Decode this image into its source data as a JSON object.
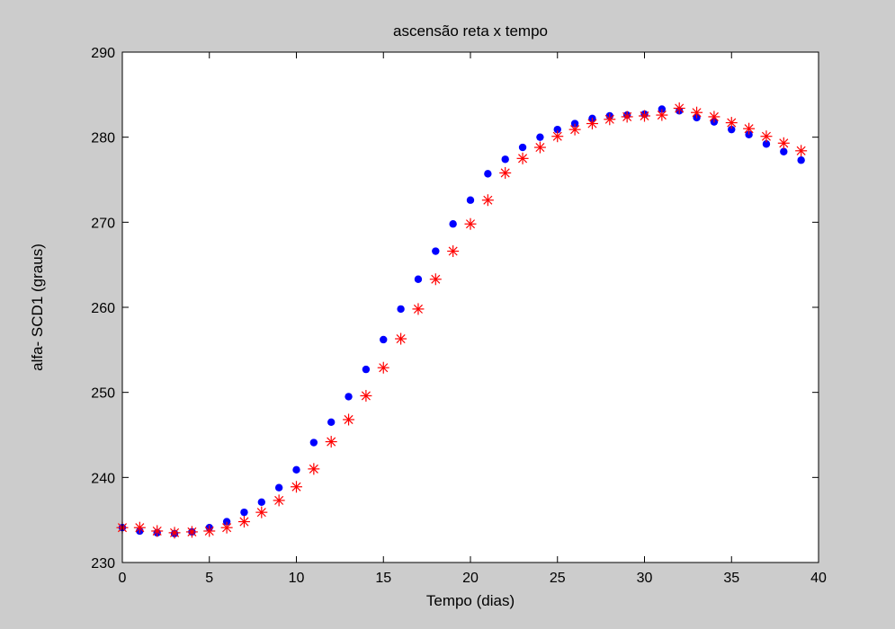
{
  "chart_data": {
    "type": "scatter",
    "title": "ascensão reta x tempo",
    "xlabel": "Tempo (dias)",
    "ylabel": "alfa- SCD1 (graus)",
    "xlim": [
      0,
      40
    ],
    "ylim": [
      230,
      290
    ],
    "xticks": [
      0,
      5,
      10,
      15,
      20,
      25,
      30,
      35,
      40
    ],
    "yticks": [
      230,
      240,
      250,
      260,
      270,
      280,
      290
    ],
    "grid": false,
    "legend": "none",
    "series": [
      {
        "marker": "dot",
        "color": "#0000ff",
        "x": [
          0,
          1,
          2,
          3,
          4,
          5,
          6,
          7,
          8,
          9,
          10,
          11,
          12,
          13,
          14,
          15,
          16,
          17,
          18,
          19,
          20,
          21,
          22,
          23,
          24,
          25,
          26,
          27,
          28,
          29,
          30,
          31,
          32,
          33,
          34,
          35,
          36,
          37,
          38,
          39
        ],
        "y": [
          234.1,
          233.7,
          233.5,
          233.4,
          233.6,
          234.1,
          234.8,
          235.9,
          237.1,
          238.8,
          240.9,
          244.1,
          246.5,
          249.5,
          252.7,
          256.2,
          259.8,
          263.3,
          266.6,
          269.8,
          272.6,
          275.7,
          277.4,
          278.8,
          280.0,
          280.9,
          281.6,
          282.2,
          282.5,
          282.6,
          282.7,
          283.3,
          283.1,
          282.3,
          281.8,
          280.9,
          280.3,
          279.2,
          278.3,
          277.3
        ]
      },
      {
        "marker": "asterisk",
        "color": "#ff0000",
        "x": [
          0,
          1,
          2,
          3,
          4,
          5,
          6,
          7,
          8,
          9,
          10,
          11,
          12,
          13,
          14,
          15,
          16,
          17,
          18,
          19,
          20,
          21,
          22,
          23,
          24,
          25,
          26,
          27,
          28,
          29,
          30,
          31,
          32,
          33,
          34,
          35,
          36,
          37,
          38,
          39
        ],
        "y": [
          234.1,
          234.1,
          233.7,
          233.5,
          233.6,
          233.7,
          234.1,
          234.8,
          235.9,
          237.3,
          238.9,
          241.0,
          244.2,
          246.8,
          249.6,
          252.9,
          256.3,
          259.8,
          263.3,
          266.6,
          269.8,
          272.6,
          275.8,
          277.5,
          278.8,
          280.1,
          280.9,
          281.6,
          282.1,
          282.4,
          282.5,
          282.6,
          283.4,
          282.9,
          282.4,
          281.7,
          281.0,
          280.1,
          279.3,
          278.4
        ]
      }
    ]
  }
}
